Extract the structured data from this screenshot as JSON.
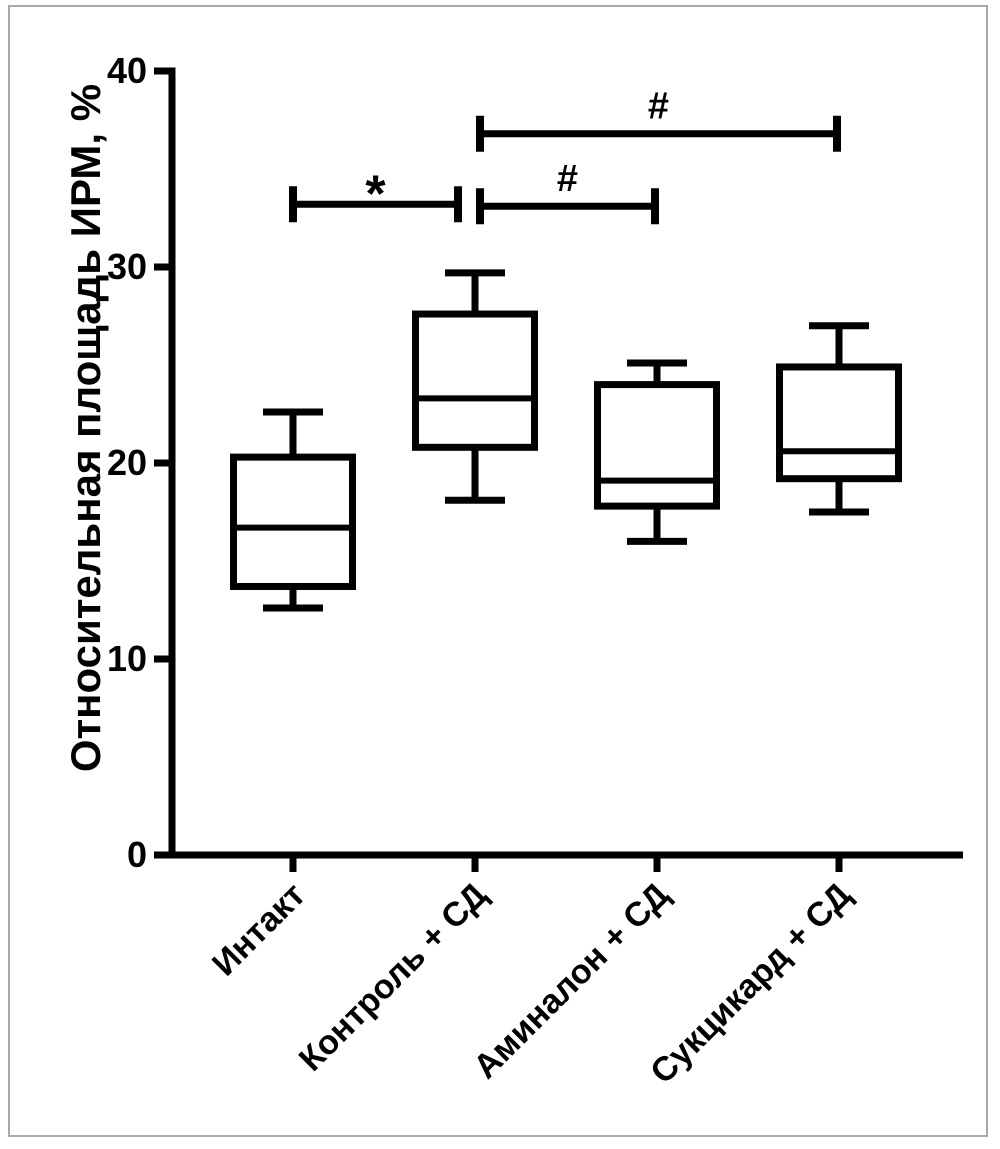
{
  "chart_data": {
    "type": "box",
    "title": "",
    "xlabel": "",
    "ylabel": "Относительная площадь ИРМ, %",
    "ylim": [
      0,
      40
    ],
    "yticks": [
      0,
      10,
      20,
      30,
      40
    ],
    "grid": false,
    "legend": false,
    "categories": [
      "Интакт",
      "Контроль + СД",
      "Аминалон + СД",
      "Сукцикард + СД"
    ],
    "series": [
      {
        "category": "Интакт",
        "min": 12.6,
        "q1": 13.7,
        "median": 16.7,
        "q3": 20.3,
        "max": 22.6
      },
      {
        "category": "Контроль + СД",
        "min": 18.1,
        "q1": 20.8,
        "median": 23.3,
        "q3": 27.6,
        "max": 29.7
      },
      {
        "category": "Аминалон + СД",
        "min": 16.0,
        "q1": 17.8,
        "median": 19.1,
        "q3": 24.0,
        "max": 25.1
      },
      {
        "category": "Сукцикард + СД",
        "min": 17.5,
        "q1": 19.2,
        "median": 20.6,
        "q3": 24.9,
        "max": 27.0
      }
    ],
    "annotations": [
      {
        "type": "comparison-bracket",
        "from": "Интакт",
        "to": "Контроль + СД",
        "label": "*",
        "level": 33.2
      },
      {
        "type": "comparison-bracket",
        "from": "Контроль + СД",
        "to": "Аминалон + СД",
        "label": "#",
        "level": 33.1
      },
      {
        "type": "comparison-bracket",
        "from": "Контроль + СД",
        "to": "Сукцикард + СД",
        "label": "#",
        "level": 36.8
      }
    ],
    "colors": {
      "stroke": "#000000",
      "box_fill": "#ffffff",
      "background": "#ffffff",
      "frame_border": "#a9a9a9"
    }
  }
}
